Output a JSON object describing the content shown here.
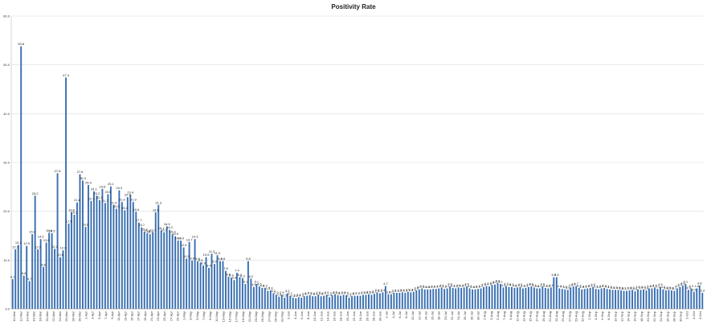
{
  "chart_data": {
    "type": "bar",
    "title": "Positivity Rate",
    "ylim": [
      0,
      60
    ],
    "yticks": [
      "0.0",
      "10.0",
      "20.0",
      "30.0",
      "40.0",
      "50.0",
      "60.0"
    ],
    "grid": true,
    "xtick_labels": [
      "10-Mar",
      "12-Mar",
      "14-Mar",
      "16-Mar",
      "18-Mar",
      "20-Mar",
      "22-Mar",
      "24-Mar",
      "26-Mar",
      "28-Mar",
      "30-Mar",
      "1-Apr",
      "3-Apr",
      "5-Apr",
      "7-Apr",
      "9-Apr",
      "11-Apr",
      "13-Apr",
      "15-Apr",
      "17-Apr",
      "19-Apr",
      "21-Apr",
      "23-Apr",
      "25-Apr",
      "27-Apr",
      "29-Apr",
      "1-May",
      "3-May",
      "5-May",
      "7-May",
      "9-May",
      "11-May",
      "13-May",
      "15-May",
      "17-May",
      "19-May",
      "21-May",
      "23-May",
      "25-May",
      "27-May",
      "29-May",
      "31-May",
      "2-Jun",
      "4-Jun",
      "6-Jun",
      "8-Jun",
      "10-Jun",
      "12-Jun",
      "14-Jun",
      "16-Jun",
      "18-Jun",
      "20-Jun",
      "22-Jun",
      "24-Jun",
      "26-Jun",
      "28-Jun",
      "30-Jun",
      "2-Jul",
      "4-Jul",
      "6-Jul",
      "8-Jul",
      "10-Jul",
      "12-Jul",
      "14-Jul",
      "16-Jul",
      "18-Jul",
      "20-Jul",
      "22-Jul",
      "24-Jul",
      "26-Jul",
      "28-Jul",
      "30-Jul",
      "1-Aug",
      "3-Aug",
      "5-Aug",
      "7-Aug",
      "9-Aug",
      "11-Aug",
      "13-Aug",
      "15-Aug",
      "17-Aug",
      "19-Aug",
      "21-Aug",
      "23-Aug",
      "25-Aug",
      "27-Aug",
      "29-Aug",
      "31-Aug",
      "2-Sep",
      "4-Sep",
      "6-Sep",
      "8-Sep",
      "10-Sep",
      "12-Sep",
      "14-Sep",
      "16-Sep",
      "18-Sep",
      "20-Sep",
      "22-Sep",
      "24-Sep",
      "26-Sep",
      "28-Sep",
      "30-Sep",
      "2-Oct",
      "4-Oct",
      "6-Oct"
    ],
    "values": [
      6.1,
      12.2,
      13.1,
      53.8,
      6.8,
      12.9,
      5.7,
      15.3,
      23.2,
      12.2,
      14.3,
      8.6,
      13.6,
      15.6,
      15.5,
      12.3,
      27.8,
      10.6,
      12.0,
      47.4,
      17.5,
      19.8,
      19.3,
      21.8,
      27.6,
      26.3,
      16.8,
      25.4,
      22.1,
      24.1,
      23.2,
      22.3,
      24.6,
      21.7,
      23.5,
      25.1,
      21.3,
      20.5,
      24.3,
      21.9,
      20.2,
      22.9,
      23.4,
      21.9,
      19.9,
      17.7,
      16.7,
      15.8,
      15.5,
      15.3,
      15.7,
      19.8,
      21.3,
      16.1,
      15.7,
      16.9,
      16.2,
      15.3,
      14.9,
      14.0,
      14.0,
      12.6,
      10.3,
      13.7,
      9.9,
      14.3,
      9.8,
      9.5,
      8.9,
      10.6,
      8.4,
      11.3,
      9.2,
      11.0,
      9.8,
      9.8,
      7.8,
      6.6,
      6.4,
      5.9,
      7.4,
      6.5,
      6.3,
      5.1,
      9.8,
      6.2,
      4.5,
      5.1,
      4.6,
      4.3,
      4.3,
      3.7,
      3.8,
      3.2,
      2.9,
      2.5,
      2.9,
      2.3,
      3.2,
      2.7,
      2.3,
      2.2,
      2.4,
      2.3,
      2.6,
      2.7,
      2.8,
      2.6,
      2.6,
      2.9,
      2.6,
      2.7,
      2.9,
      2.4,
      2.8,
      3.0,
      2.8,
      2.7,
      2.9,
      2.8,
      2.3,
      2.6,
      2.7,
      2.7,
      2.7,
      2.9,
      2.9,
      3.0,
      2.9,
      3.1,
      3.4,
      3.2,
      3.4,
      4.7,
      3.0,
      3.0,
      3.3,
      3.3,
      3.3,
      3.4,
      3.3,
      3.5,
      3.4,
      3.5,
      3.8,
      4.0,
      4.2,
      4.0,
      4.0,
      4.0,
      4.1,
      4.1,
      4.2,
      4.4,
      4.1,
      4.2,
      4.6,
      4.3,
      4.2,
      4.4,
      4.3,
      4.4,
      4.6,
      4.2,
      4.0,
      4.0,
      4.1,
      4.2,
      4.5,
      4.7,
      4.6,
      4.9,
      5.0,
      5.3,
      5.1,
      4.4,
      4.7,
      4.5,
      4.5,
      4.3,
      4.4,
      4.5,
      4.2,
      4.3,
      4.5,
      4.6,
      4.4,
      4.2,
      4.2,
      4.6,
      4.3,
      4.2,
      4.4,
      6.5,
      6.5,
      4.2,
      4.1,
      4.0,
      3.9,
      4.4,
      4.6,
      4.7,
      4.3,
      4.0,
      4.1,
      4.2,
      4.3,
      4.5,
      4.1,
      4.0,
      4.2,
      4.3,
      4.1,
      4.0,
      3.9,
      3.9,
      3.9,
      3.8,
      3.7,
      3.7,
      3.8,
      3.9,
      3.6,
      4.0,
      3.9,
      4.0,
      3.8,
      4.2,
      4.2,
      4.4,
      4.1,
      4.5,
      4.0,
      3.8,
      3.9,
      3.8,
      3.7,
      4.2,
      4.5,
      4.8,
      5.1,
      3.9,
      4.2,
      3.5,
      4.2,
      4.8,
      3.3
    ],
    "labels": [
      "6.1",
      "12.2",
      "13.1",
      "53.8",
      "6.8",
      "12.9",
      "5.7",
      "15.3",
      "23.2",
      "12.2",
      "14.3",
      "8.6",
      "13.6",
      "15.6",
      "15.5",
      "12.3",
      "27.8",
      "10.6",
      "12.0",
      "47.4",
      "17.5",
      "19.8",
      "19.3",
      "21.8",
      "27.6",
      "26.3",
      "16.8",
      "25.4",
      "22.1",
      "24.1",
      "23.2",
      "22.3",
      "24.6",
      "21.7",
      "23.5",
      "25.1",
      "21.3",
      "20.5",
      "24.3",
      "21.9",
      "20.2",
      "22.9",
      "23.4",
      "21.9",
      "19.9",
      "17.7",
      "16.7",
      "15.8",
      "15.5",
      "15.3",
      "15.7",
      "19.8",
      "21.3",
      "16.1",
      "15.7",
      "16.9",
      "16.2",
      "15.3",
      "14.9",
      "14.0",
      "14.0",
      "12.6",
      "10.3",
      "13.7",
      "9.9",
      "14.3",
      "9.8",
      "9.5",
      "8.9",
      "10.6",
      "8.4",
      "11.3",
      "9.2",
      "11.0",
      "9.8",
      "9.8",
      "7.8",
      "6.6",
      "6.4",
      "5.9",
      "7.4",
      "6.5",
      "6.3",
      "5.1",
      "9.8",
      "6.2",
      "4.5",
      "5.1",
      "4.6",
      "4.3",
      "4.3",
      "3.7",
      "3.8",
      "3.2",
      "2.9",
      "2.5",
      "2.9",
      "2.3",
      "3.2",
      "2.7",
      "2.3",
      "2.2",
      "2.4",
      "2.3",
      "2.6",
      "2.7",
      "2.8",
      "2.6",
      "2.6",
      "2.9",
      "2.6",
      "2.7",
      "2.9",
      "2.4",
      "2.8",
      "3.0",
      "2.8",
      "2.7",
      "2.9",
      "2.8",
      "2.3",
      "2.6",
      "2.7",
      "2.7",
      "2.7",
      "2.9",
      "2.9",
      "3.0",
      "2.9",
      "3.1",
      "3.4",
      "3.2",
      "3.4",
      "4.7",
      "3.0",
      "3.0",
      "3.3",
      "3.3",
      "3.3",
      "3.4",
      "3.3",
      "3.5",
      "3.4",
      "3.5",
      "3.8",
      "4.0",
      "4.2",
      "4.0",
      "4.0",
      "4.0",
      "4.1",
      "4.1",
      "4.2",
      "4.4",
      "4.1",
      "4.2",
      "4.6",
      "4.3",
      "4.2",
      "4.4",
      "4.3",
      "4.4",
      "4.6",
      "4.2",
      "4.0",
      "4.0",
      "4.1",
      "4.2",
      "4.5",
      "4.7",
      "4.6",
      "4.9",
      "5.0",
      "5.3",
      "5.1",
      "4.4",
      "4.7",
      "4.5",
      "4.5",
      "4.3",
      "4.4",
      "4.5",
      "4.2",
      "4.3",
      "4.5",
      "4.6",
      "4.4",
      "4.2",
      "4.2",
      "4.6",
      "4.3",
      "4.2",
      "4.4",
      "6.5",
      "6.5",
      "4.2",
      "4.1",
      "4.0",
      "3.9",
      "4.4",
      "4.6",
      "4.7",
      "4.3",
      "4.0",
      "4.1",
      "4.2",
      "4.3",
      "4.5",
      "4.1",
      "4.0",
      "4.2",
      "4.3",
      "4.1",
      "4.0",
      "3.9",
      "3.9",
      "3.9",
      "3.8",
      "3.7",
      "3.7",
      "3.8",
      "3.9",
      "3.6",
      "4.0",
      "3.9",
      "4.0",
      "3.8",
      "4.2",
      "4.2",
      "4.4",
      "4.1",
      "4.5",
      "4.0",
      "3.8",
      "3.9",
      "3.8",
      "3.7",
      "4.2",
      "4.5",
      "4.8",
      "5.1",
      "3.9",
      "4.2",
      "3.5",
      "4.2",
      "4.8",
      "3.3"
    ],
    "bar_color": "#3a6fb0",
    "gridline_color": "#d9d9d9"
  }
}
